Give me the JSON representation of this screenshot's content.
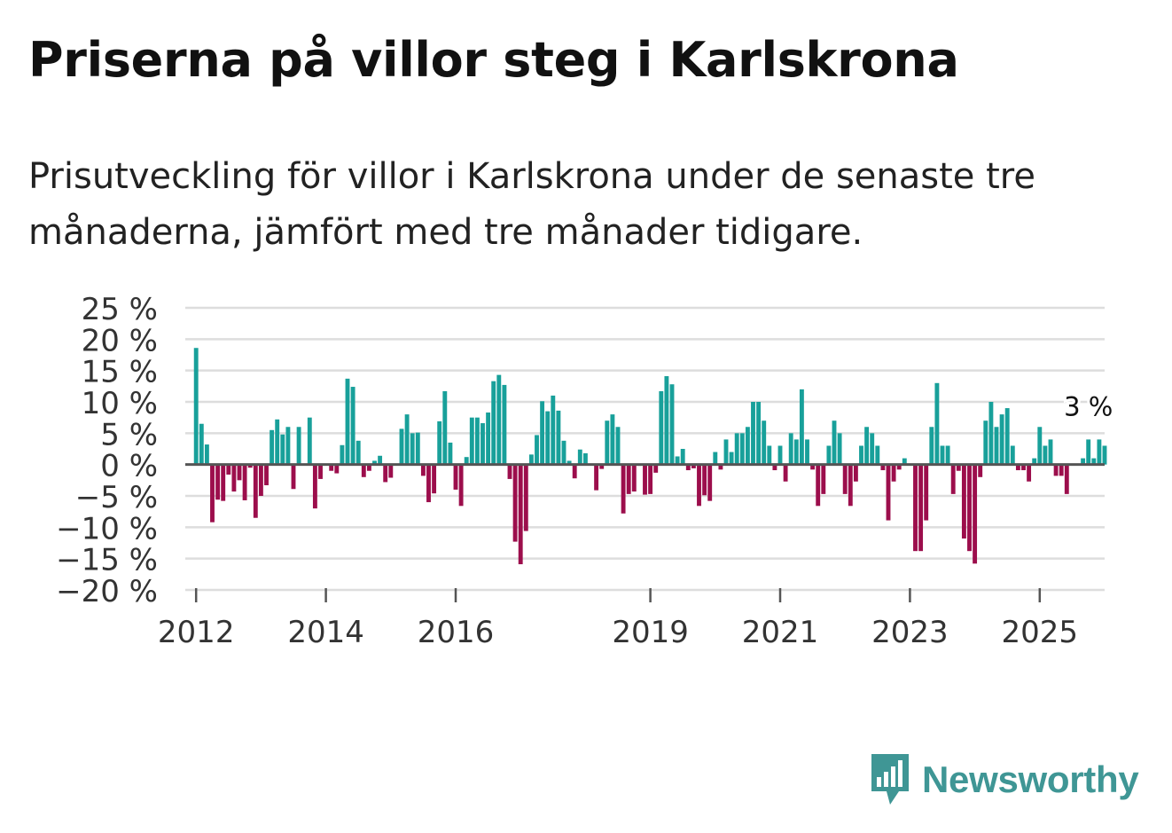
{
  "title": "Priserna på villor steg i Karlskrona",
  "subtitle": "Prisutveckling för villor i Karlskrona under de senaste tre månaderna, jämfört med tre månader tidigare.",
  "brand": {
    "name": "Newsworthy",
    "color": "#3f9695",
    "icon": "newsworthy-logo-icon"
  },
  "colors": {
    "positive": "#18a09a",
    "negative": "#9c0e4c",
    "zero_line": "#555555",
    "grid": "#dddddd",
    "tick_text": "#333333"
  },
  "chart_data": {
    "type": "bar",
    "title": "Priserna på villor steg i Karlskrona",
    "xlabel": "",
    "ylabel": "",
    "ylim": [
      -20,
      25
    ],
    "yticks": [
      25,
      20,
      15,
      10,
      5,
      0,
      -5,
      -10,
      -15,
      -20
    ],
    "ytick_labels": [
      "25 %",
      "20 %",
      "15 %",
      "10 %",
      "5 %",
      "0 %",
      "−5 %",
      "−10 %",
      "−15 %",
      "−20 %"
    ],
    "x_range": [
      "2011-11",
      "2026-01"
    ],
    "xticks": [
      {
        "label": "2012",
        "x": "2012-01"
      },
      {
        "label": "2014",
        "x": "2014-01"
      },
      {
        "label": "2016",
        "x": "2016-01"
      },
      {
        "label": "2019",
        "x": "2019-01"
      },
      {
        "label": "2021",
        "x": "2021-01"
      },
      {
        "label": "2023",
        "x": "2023-01"
      },
      {
        "label": "2025",
        "x": "2025-01"
      }
    ],
    "grid": true,
    "annotation": {
      "text": "3 %",
      "x": "2025-10",
      "value": 3
    },
    "series": [
      {
        "name": "Prisutveckling",
        "start": "2012-01",
        "values": [
          18.6,
          6.5,
          3.2,
          -9.2,
          -5.6,
          -5.8,
          -1.6,
          -4.3,
          -2.5,
          -5.7,
          -0.5,
          -8.5,
          -5.0,
          -3.3,
          5.5,
          7.2,
          4.8,
          6.0,
          -3.9,
          6.0,
          0,
          7.5,
          -7.0,
          -2.3,
          0,
          -1.0,
          -1.4,
          3.1,
          13.7,
          12.4,
          3.8,
          -2.0,
          -1.0,
          0.6,
          1.4,
          -2.8,
          -2.1,
          0,
          5.7,
          8.0,
          5.0,
          5.1,
          -1.8,
          -6.0,
          -4.6,
          6.9,
          11.7,
          3.5,
          -4.0,
          -6.6,
          1.2,
          7.5,
          7.5,
          6.6,
          8.3,
          13.3,
          14.3,
          12.7,
          -2.3,
          -12.3,
          -15.9,
          -10.6,
          1.6,
          4.7,
          10.1,
          8.5,
          11.0,
          8.6,
          3.8,
          0.6,
          -2.2,
          2.4,
          1.8,
          0,
          -4.1,
          -0.7,
          7.0,
          8.0,
          6.0,
          -7.8,
          -4.7,
          -4.3,
          -0.2,
          -4.8,
          -4.7,
          -1.3,
          11.7,
          14.1,
          12.8,
          1.3,
          2.5,
          -0.9,
          -0.6,
          -6.6,
          -4.9,
          -5.8,
          2.0,
          -0.8,
          4.0,
          2.0,
          5.0,
          5.0,
          6.0,
          10.0,
          10.0,
          7.0,
          3.0,
          -0.9,
          3.0,
          -2.7,
          5.0,
          4.0,
          12.0,
          4.0,
          -0.8,
          -6.6,
          -4.7,
          3.0,
          7.0,
          5.0,
          -4.7,
          -6.6,
          -2.7,
          3.0,
          6.0,
          5.0,
          3.0,
          -0.9,
          -8.9,
          -2.7,
          -0.8,
          1.0,
          0,
          -13.8,
          -13.8,
          -8.9,
          6.0,
          13.0,
          3.0,
          3.0,
          -4.7,
          -1.0,
          -11.8,
          -13.8,
          -15.8,
          -2.0,
          7.0,
          10.0,
          6.0,
          8.0,
          9.0,
          3.0,
          -0.9,
          -0.9,
          -2.7,
          1.0,
          6.0,
          3.0,
          4.0,
          -1.8,
          -1.8,
          -4.7,
          0,
          0,
          1.0,
          4.0,
          1.0,
          4.0,
          3.0
        ]
      }
    ]
  }
}
